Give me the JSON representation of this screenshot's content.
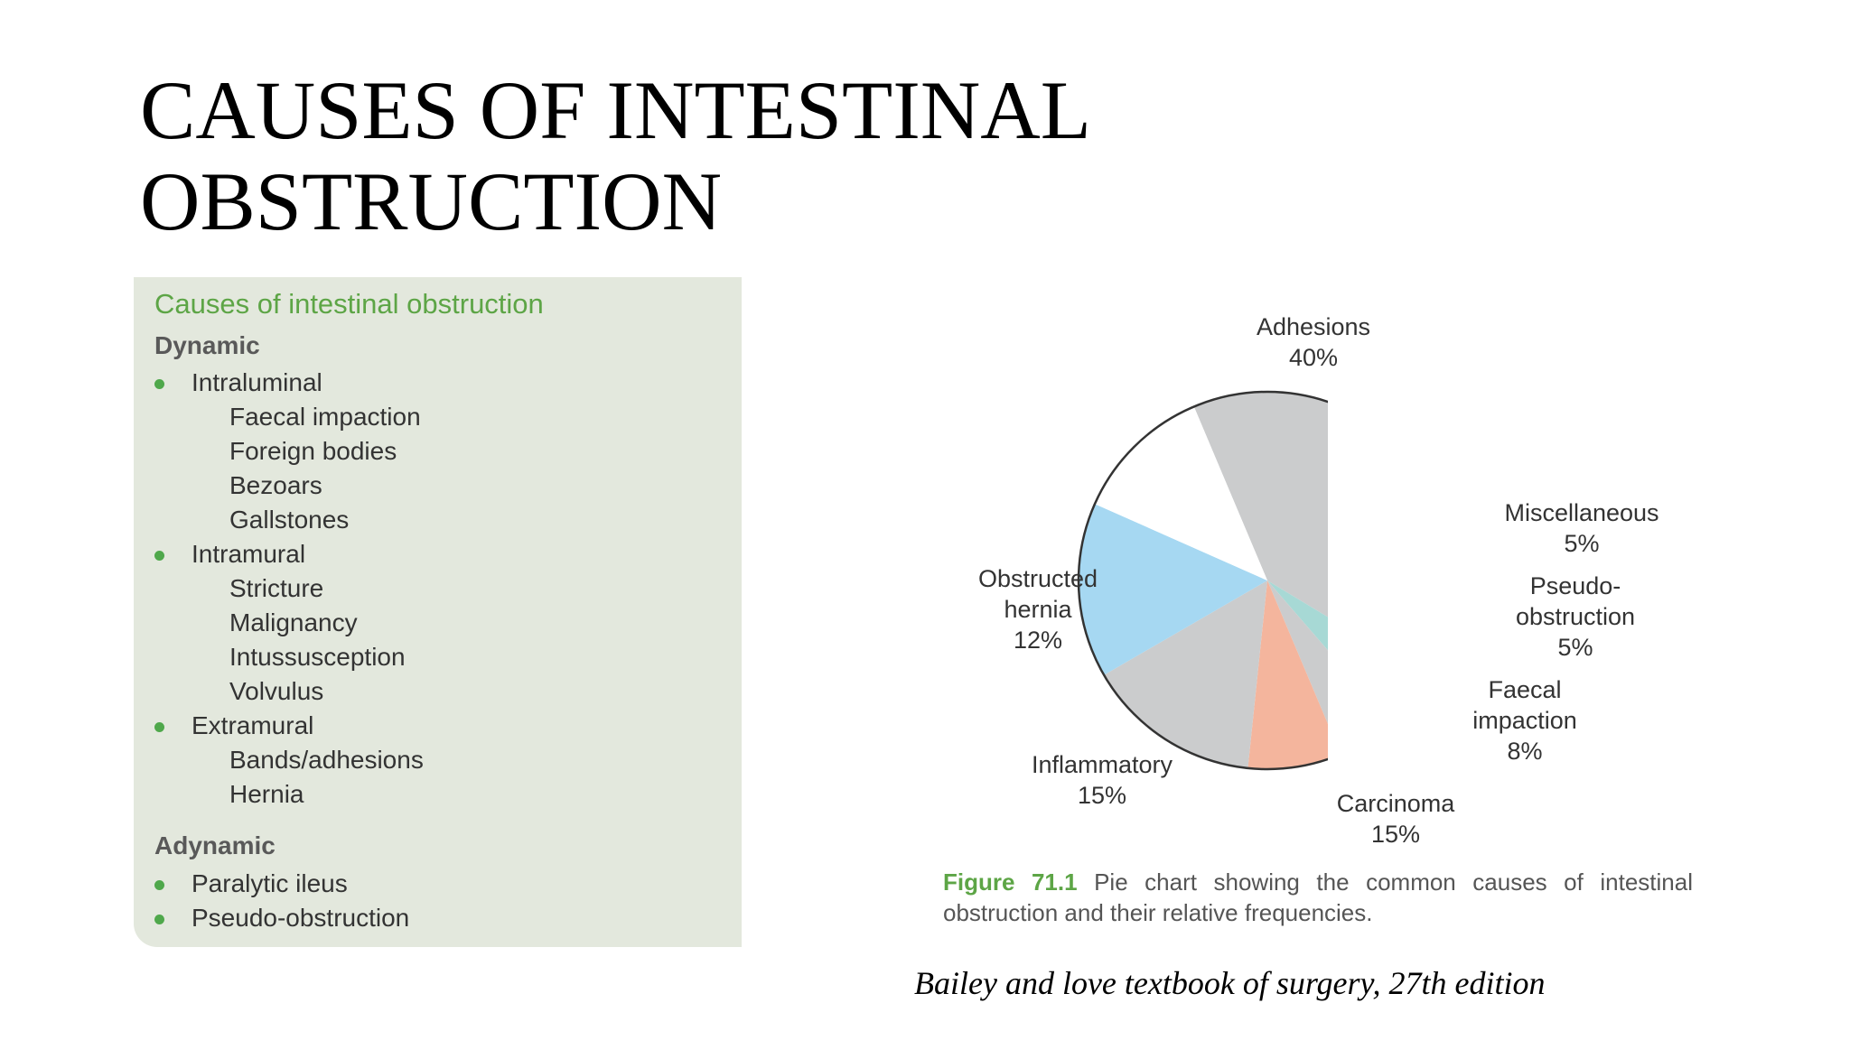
{
  "slide": {
    "title_line1": "CAUSES OF INTESTINAL",
    "title_line2": "OBSTRUCTION"
  },
  "causes_box": {
    "heading": "Causes of intestinal obstruction",
    "dynamic_heading": "Dynamic",
    "dynamic": [
      {
        "label": "Intraluminal",
        "items": [
          "Faecal impaction",
          "Foreign bodies",
          "Bezoars",
          "Gallstones"
        ]
      },
      {
        "label": "Intramural",
        "items": [
          "Stricture",
          "Malignancy",
          "Intussusception",
          "Volvulus"
        ]
      },
      {
        "label": "Extramural",
        "items": [
          "Bands/adhesions",
          "Hernia"
        ]
      }
    ],
    "adynamic_heading": "Adynamic",
    "adynamic": [
      "Paralytic ileus",
      "Pseudo-obstruction"
    ]
  },
  "chart_data": {
    "type": "pie",
    "slices": [
      {
        "label": "Adhesions",
        "value": 40,
        "value_label": "40%",
        "color": "#cbcccd"
      },
      {
        "label": "Miscellaneous",
        "value": 5,
        "value_label": "5%",
        "color": "#a7d9d5"
      },
      {
        "label": "Pseudo-obstruction",
        "value": 5,
        "value_label": "5%",
        "color": "#cbcccd"
      },
      {
        "label": "Faecal impaction",
        "value": 8,
        "value_label": "8%",
        "color": "#f4b59d"
      },
      {
        "label": "Carcinoma",
        "value": 15,
        "value_label": "15%",
        "color": "#cbcccd"
      },
      {
        "label": "Inflammatory",
        "value": 15,
        "value_label": "15%",
        "color": "#a6d8f2"
      },
      {
        "label": "Obstructed hernia",
        "value": 12,
        "value_label": "12%",
        "color": "#ffffff"
      }
    ],
    "label_text": {
      "adhesions": "Adhesions",
      "miscellaneous": "Miscellaneous",
      "pseudo_line1": "Pseudo-",
      "pseudo_line2": "obstruction",
      "faecal_line1": "Faecal",
      "faecal_line2": "impaction",
      "carcinoma": "Carcinoma",
      "inflammatory": "Inflammatory",
      "hernia_line1": "Obstructed",
      "hernia_line2": "hernia"
    }
  },
  "figure_caption": {
    "label": "Figure 71.1",
    "text": " Pie chart showing the common causes of intestinal obstruction and their relative frequencies."
  },
  "citation": "Bailey and love textbook of surgery, 27th edition"
}
